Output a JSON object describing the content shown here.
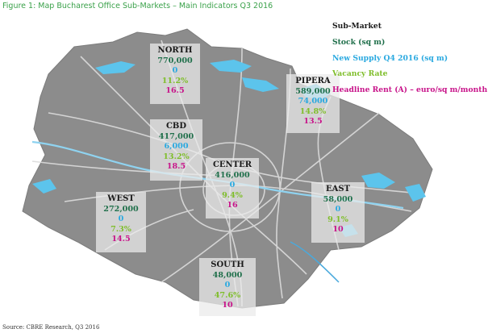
{
  "title": "Figure 1: Map Bucharest Office Sub-Markets – Main Indicators Q3 2016",
  "legend": {
    "submarket": "Sub-Market",
    "stock": "Stock (sq m)",
    "new_supply": "New Supply Q4 2016 (sq m)",
    "vacancy": "Vacancy Rate",
    "rent": "Headline Rent (A) – euro/sq m/month"
  },
  "colors": {
    "stock": "#1f6f4a",
    "new_supply": "#2aa9e0",
    "vacancy": "#7fbe2a",
    "rent": "#c8148a",
    "title": "#3aa14a"
  },
  "submarkets": {
    "north": {
      "name": "NORTH",
      "stock": "770,000",
      "new_supply": "0",
      "vacancy": "11.2%",
      "rent": "16.5"
    },
    "pipera": {
      "name": "PIPERA",
      "stock": "589,000",
      "new_supply": "74,000",
      "vacancy": "14.8%",
      "rent": "13.5"
    },
    "cbd": {
      "name": "CBD",
      "stock": "417,000",
      "new_supply": "6,000",
      "vacancy": "13.2%",
      "rent": "18.5"
    },
    "center": {
      "name": "CENTER",
      "stock": "416,000",
      "new_supply": "0",
      "vacancy": "9.4%",
      "rent": "16"
    },
    "west": {
      "name": "WEST",
      "stock": "272,000",
      "new_supply": "0",
      "vacancy": "7.3%",
      "rent": "14.5"
    },
    "east": {
      "name": "EAST",
      "stock": "58,000",
      "new_supply": "0",
      "vacancy": "9.1%",
      "rent": "10"
    },
    "south": {
      "name": "SOUTH",
      "stock": "48,000",
      "new_supply": "0",
      "vacancy": "47.6%",
      "rent": "10"
    }
  },
  "source": "Source: CBRE Research, Q3 2016"
}
